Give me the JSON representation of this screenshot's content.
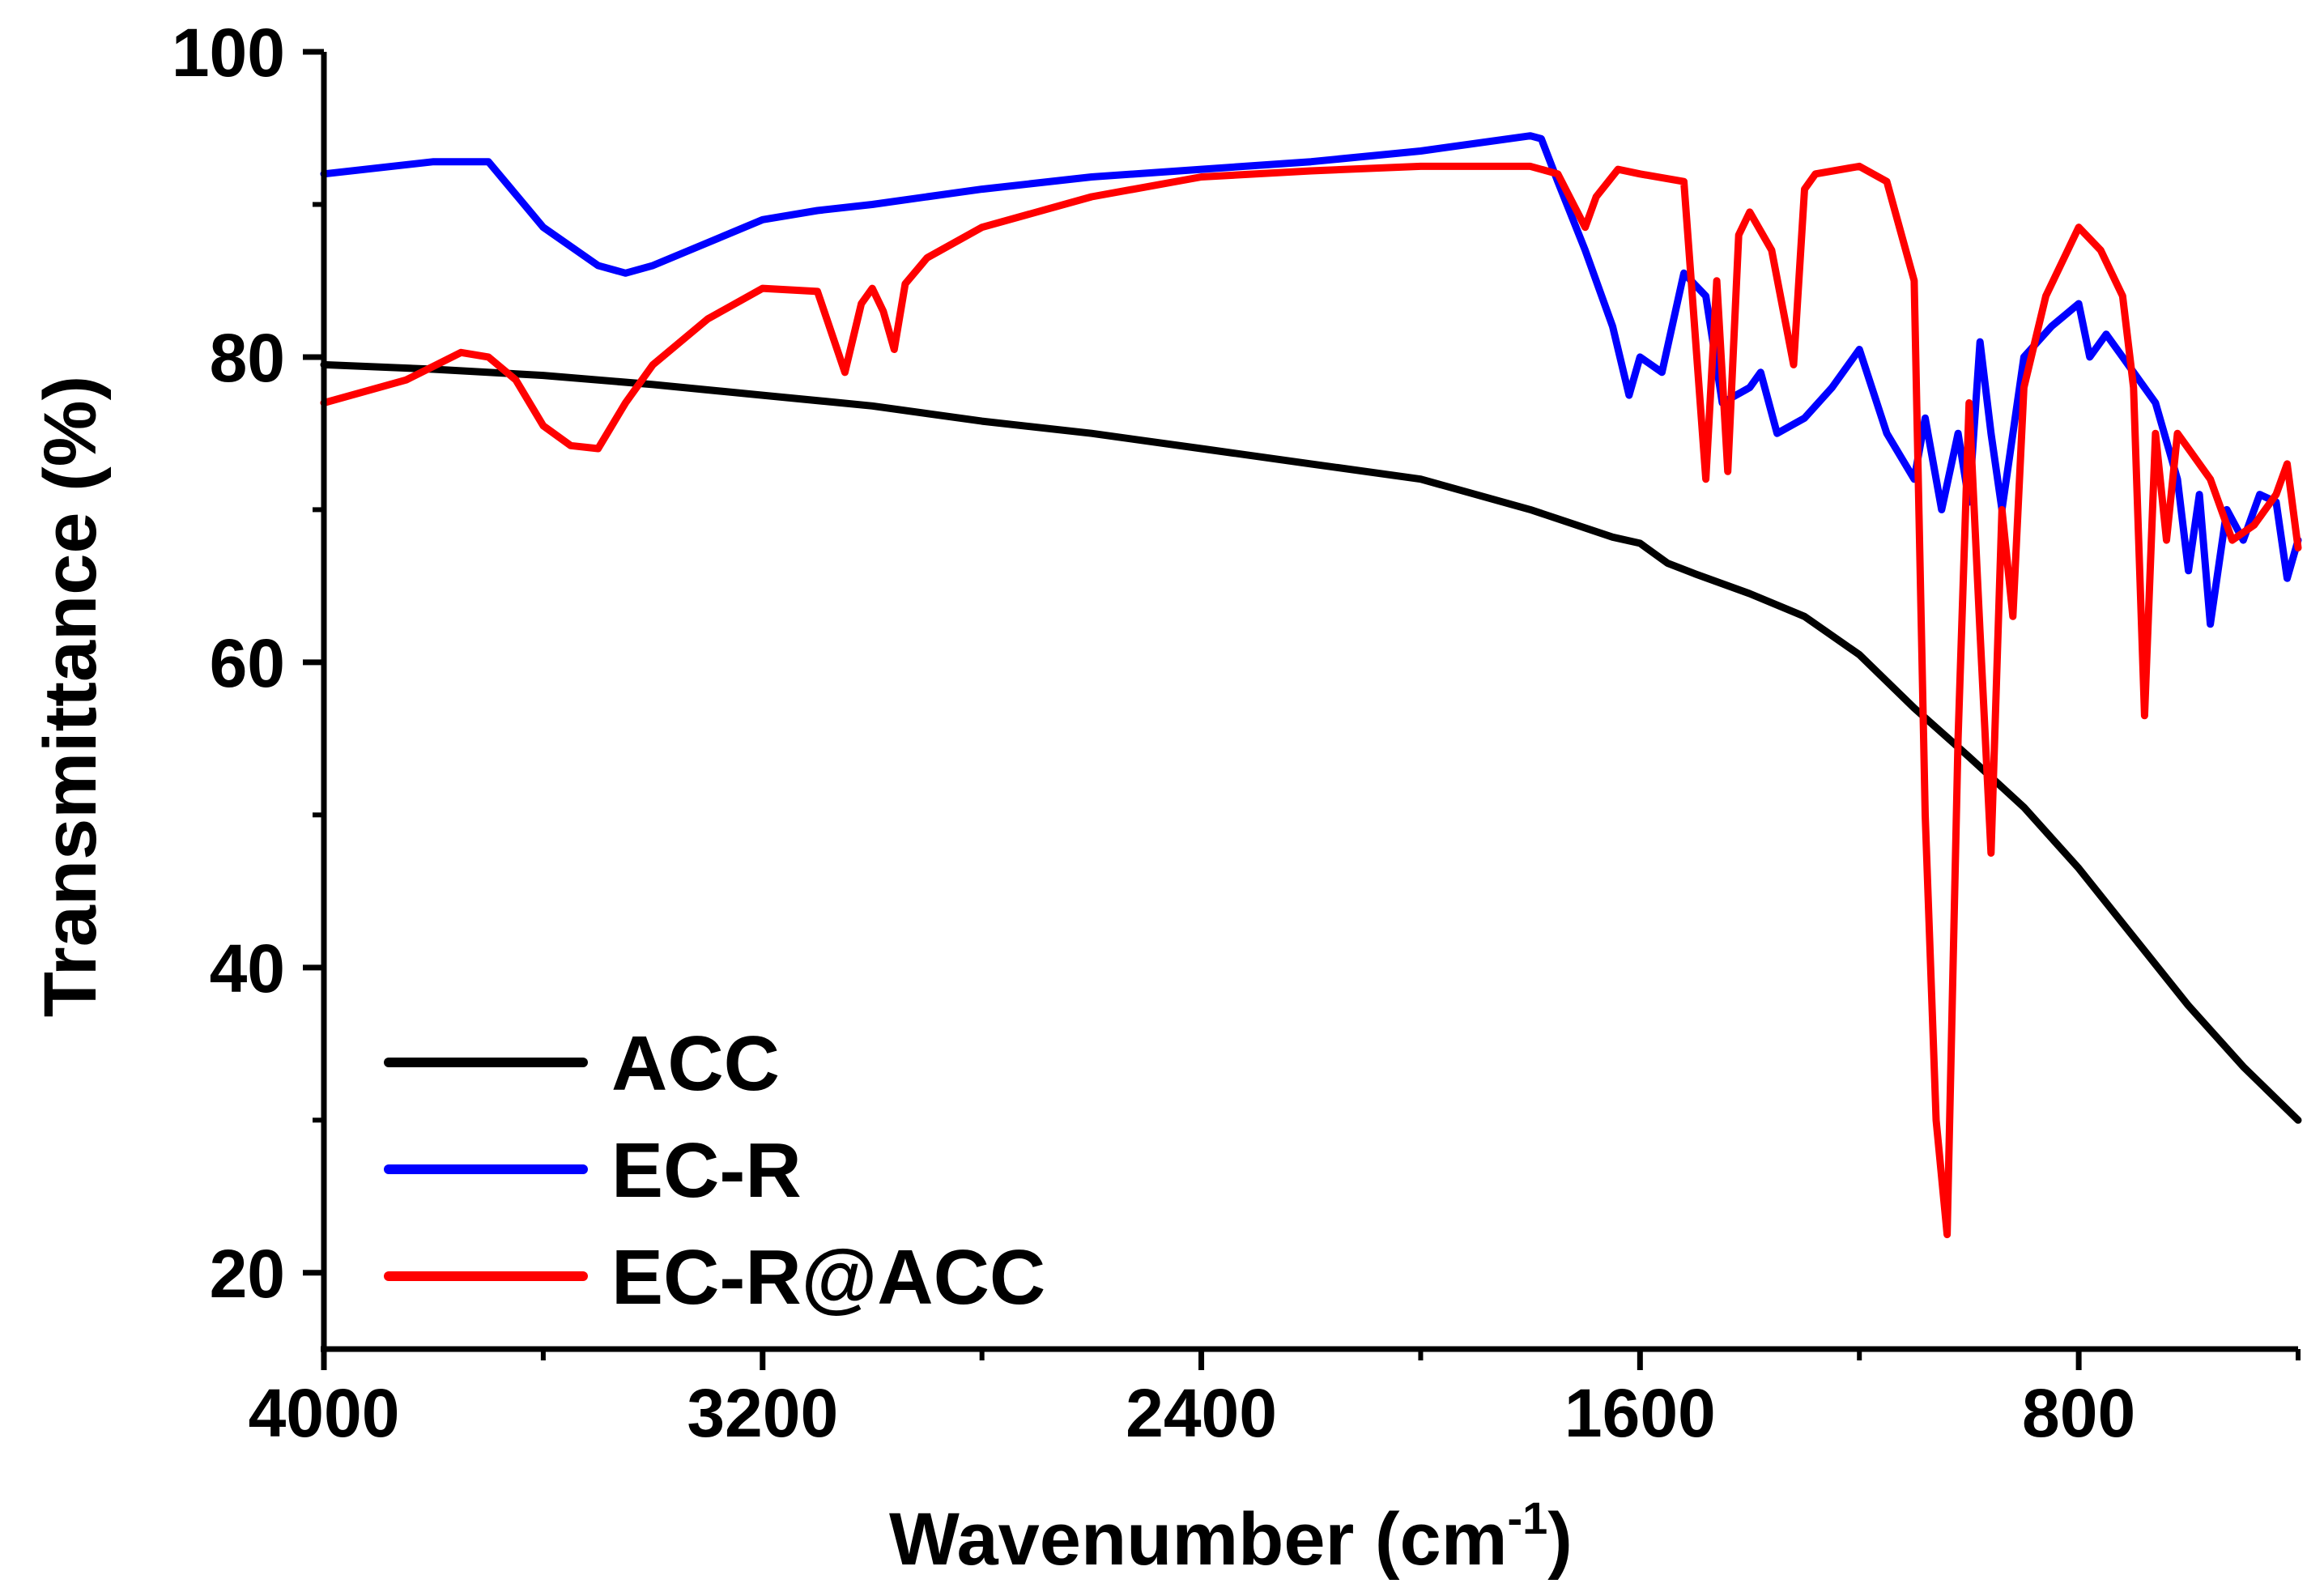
{
  "chart_data": {
    "type": "line",
    "title": "",
    "xlabel_main": "Wavenumber (cm",
    "xlabel_sup": "-1",
    "xlabel_close": ")",
    "ylabel": "Transmittance (%)",
    "xlim": [
      4000,
      400
    ],
    "ylim": [
      15,
      100
    ],
    "xticks": [
      4000,
      3200,
      2400,
      1600,
      800
    ],
    "yticks": [
      20,
      40,
      60,
      80,
      100
    ],
    "legend_position": "bottom-left",
    "colors": {
      "ACC": "#000000",
      "EC-R": "#0000ff",
      "EC-R@ACC": "#ff0000"
    },
    "series": [
      {
        "name": "ACC",
        "x": [
          4000,
          3800,
          3600,
          3400,
          3200,
          3000,
          2800,
          2600,
          2400,
          2200,
          2000,
          1800,
          1650,
          1600,
          1550,
          1500,
          1400,
          1300,
          1200,
          1100,
          1000,
          900,
          800,
          700,
          600,
          500,
          400
        ],
        "y": [
          79.5,
          79.2,
          78.8,
          78.2,
          77.5,
          76.8,
          75.8,
          75.0,
          74.0,
          73.0,
          72.0,
          70.0,
          68.2,
          67.8,
          66.5,
          65.8,
          64.5,
          63.0,
          60.5,
          57.0,
          53.8,
          50.5,
          46.5,
          42.0,
          37.5,
          33.5,
          30.0
        ]
      },
      {
        "name": "EC-R",
        "x": [
          4000,
          3800,
          3700,
          3600,
          3500,
          3450,
          3400,
          3300,
          3200,
          3100,
          3000,
          2900,
          2800,
          2600,
          2400,
          2200,
          2000,
          1800,
          1780,
          1750,
          1700,
          1650,
          1620,
          1600,
          1560,
          1520,
          1480,
          1450,
          1400,
          1380,
          1350,
          1300,
          1250,
          1200,
          1150,
          1100,
          1080,
          1050,
          1020,
          1000,
          980,
          960,
          940,
          900,
          850,
          800,
          780,
          750,
          720,
          700,
          660,
          620,
          600,
          580,
          560,
          530,
          500,
          470,
          440,
          420,
          400
        ],
        "y": [
          92,
          92.8,
          92.8,
          88.5,
          86,
          85.5,
          86,
          87.5,
          89,
          89.6,
          90,
          90.5,
          91,
          91.8,
          92.3,
          92.8,
          93.5,
          94.5,
          94.3,
          91.5,
          87,
          82,
          77.5,
          80,
          79,
          85.5,
          84,
          77,
          78,
          79,
          75,
          76,
          78,
          80.5,
          75,
          72,
          76,
          70,
          75,
          70.5,
          81,
          75,
          70,
          80,
          82,
          83.5,
          80,
          81.5,
          80,
          79,
          77,
          72,
          66,
          71,
          62.5,
          70,
          68,
          71,
          70.5,
          65.5,
          68
        ]
      },
      {
        "name": "EC-R@ACC",
        "x": [
          4000,
          3850,
          3750,
          3700,
          3650,
          3600,
          3550,
          3500,
          3450,
          3400,
          3300,
          3200,
          3100,
          3050,
          3020,
          3000,
          2980,
          2960,
          2940,
          2900,
          2800,
          2600,
          2400,
          2200,
          2000,
          1800,
          1750,
          1700,
          1680,
          1640,
          1600,
          1520,
          1480,
          1460,
          1440,
          1420,
          1400,
          1360,
          1320,
          1300,
          1280,
          1200,
          1150,
          1100,
          1080,
          1060,
          1040,
          1020,
          1000,
          980,
          960,
          940,
          920,
          900,
          860,
          800,
          760,
          720,
          700,
          680,
          660,
          640,
          620,
          600,
          560,
          520,
          480,
          440,
          420,
          400
        ],
        "y": [
          77,
          78.5,
          80.3,
          80.0,
          78.5,
          75.5,
          74.2,
          74.0,
          77,
          79.5,
          82.5,
          84.5,
          84.3,
          79,
          83.5,
          84.5,
          83,
          80.5,
          84.8,
          86.5,
          88.5,
          90.5,
          91.8,
          92.2,
          92.5,
          92.5,
          92.0,
          88.5,
          90.5,
          92.3,
          92.0,
          91.5,
          72.0,
          85.0,
          72.5,
          88.0,
          89.5,
          87.0,
          79.5,
          91.0,
          92.0,
          92.5,
          91.5,
          85.0,
          50.0,
          30.0,
          22.5,
          55.0,
          77.0,
          62.0,
          47.5,
          70.0,
          63.0,
          78.0,
          84.0,
          88.5,
          87.0,
          84.0,
          78.0,
          56.5,
          75.0,
          68.0,
          75.0,
          74.0,
          72.0,
          68.0,
          69.0,
          71.0,
          73.0,
          67.5
        ]
      }
    ]
  }
}
